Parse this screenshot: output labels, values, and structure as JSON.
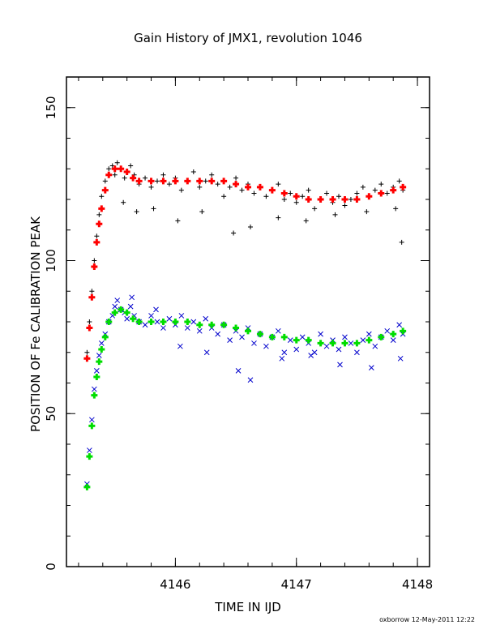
{
  "chart_data": {
    "type": "scatter",
    "title": "Gain History of JMX1, revolution 1046",
    "xlabel": "TIME IN IJD",
    "ylabel": "POSITION OF Fe CALIBRATION PEAK",
    "footer": "oxborrow 12-May-2011 12:22",
    "xlim": [
      4145.1,
      4148.1
    ],
    "ylim": [
      0,
      160
    ],
    "x_ticks": [
      4146,
      4147,
      4148
    ],
    "y_ticks": [
      0,
      50,
      100,
      150
    ],
    "grid": false,
    "series": [
      {
        "marker": "plus",
        "color": "#000000",
        "x": [
          4145.27,
          4145.29,
          4145.31,
          4145.33,
          4145.35,
          4145.37,
          4145.39,
          4145.42,
          4145.45,
          4145.48,
          4145.5,
          4145.52,
          4145.55,
          4145.58,
          4145.6,
          4145.63,
          4145.66,
          4145.7,
          4145.75,
          4145.8,
          4145.85,
          4145.9,
          4145.95,
          4146.0,
          4146.05,
          4146.1,
          4146.15,
          4146.2,
          4146.25,
          4146.3,
          4146.35,
          4146.4,
          4146.45,
          4146.5,
          4146.55,
          4146.6,
          4146.65,
          4146.7,
          4146.75,
          4146.8,
          4146.85,
          4146.9,
          4146.95,
          4147.0,
          4147.05,
          4147.1,
          4147.15,
          4147.2,
          4147.25,
          4147.3,
          4147.35,
          4147.4,
          4147.45,
          4147.5,
          4147.55,
          4147.6,
          4147.65,
          4147.7,
          4147.75,
          4147.8,
          4147.85,
          4147.88,
          4145.57,
          4145.68,
          4145.82,
          4146.02,
          4146.22,
          4146.48,
          4146.62,
          4146.85,
          4147.08,
          4147.32,
          4147.58,
          4147.82,
          4147.87
        ],
        "y": [
          70,
          80,
          90,
          100,
          108,
          115,
          121,
          126,
          130,
          131,
          128,
          132,
          130,
          127,
          129,
          131,
          128,
          125,
          127,
          124,
          126,
          128,
          125,
          127,
          123,
          126,
          129,
          124,
          126,
          128,
          125,
          121,
          124,
          127,
          123,
          125,
          122,
          124,
          121,
          123,
          125,
          120,
          122,
          119,
          121,
          123,
          117,
          120,
          122,
          119,
          121,
          118,
          120,
          122,
          124,
          121,
          123,
          125,
          122,
          124,
          126,
          123,
          119,
          116,
          117,
          113,
          116,
          109,
          111,
          114,
          113,
          115,
          116,
          117,
          106
        ]
      },
      {
        "marker": "plus",
        "color": "#ff0000",
        "x": [
          4145.27,
          4145.29,
          4145.31,
          4145.33,
          4145.35,
          4145.37,
          4145.39,
          4145.42,
          4145.45,
          4145.5,
          4145.55,
          4145.6,
          4145.65,
          4145.7,
          4145.8,
          4145.9,
          4146.0,
          4146.1,
          4146.2,
          4146.3,
          4146.4,
          4146.5,
          4146.6,
          4146.7,
          4146.8,
          4146.9,
          4147.0,
          4147.1,
          4147.2,
          4147.3,
          4147.4,
          4147.5,
          4147.6,
          4147.7,
          4147.8,
          4147.88
        ],
        "y": [
          68,
          78,
          88,
          98,
          106,
          112,
          117,
          123,
          128,
          130,
          130,
          129,
          127,
          126,
          126,
          126,
          126,
          126,
          126,
          126,
          126,
          125,
          124,
          124,
          123,
          122,
          121,
          120,
          120,
          120,
          120,
          120,
          121,
          122,
          123,
          124
        ]
      },
      {
        "marker": "cross",
        "color": "#0000cc",
        "x": [
          4145.27,
          4145.29,
          4145.31,
          4145.33,
          4145.35,
          4145.37,
          4145.39,
          4145.42,
          4145.45,
          4145.48,
          4145.5,
          4145.52,
          4145.55,
          4145.58,
          4145.6,
          4145.63,
          4145.66,
          4145.7,
          4145.75,
          4145.8,
          4145.85,
          4145.9,
          4145.95,
          4146.0,
          4146.05,
          4146.1,
          4146.15,
          4146.2,
          4146.25,
          4146.3,
          4146.35,
          4146.4,
          4146.45,
          4146.5,
          4146.55,
          4146.6,
          4146.65,
          4146.7,
          4146.75,
          4146.8,
          4146.85,
          4146.9,
          4146.95,
          4147.0,
          4147.05,
          4147.1,
          4147.15,
          4147.2,
          4147.25,
          4147.3,
          4147.35,
          4147.4,
          4147.45,
          4147.5,
          4147.55,
          4147.6,
          4147.65,
          4147.7,
          4147.75,
          4147.8,
          4147.85,
          4147.88,
          4145.64,
          4145.84,
          4146.04,
          4146.26,
          4146.52,
          4146.62,
          4146.88,
          4147.12,
          4147.36,
          4147.62,
          4147.86
        ],
        "y": [
          27,
          38,
          48,
          58,
          64,
          69,
          73,
          76,
          80,
          82,
          85,
          87,
          84,
          83,
          81,
          85,
          82,
          80,
          79,
          82,
          80,
          78,
          81,
          79,
          82,
          78,
          80,
          77,
          81,
          78,
          76,
          79,
          74,
          77,
          75,
          78,
          73,
          76,
          72,
          75,
          77,
          70,
          74,
          71,
          75,
          73,
          70,
          76,
          72,
          74,
          71,
          75,
          73,
          70,
          74,
          76,
          72,
          75,
          77,
          74,
          79,
          76,
          88,
          84,
          72,
          70,
          64,
          61,
          68,
          69,
          66,
          65,
          68
        ]
      },
      {
        "marker": "plus",
        "color": "#00dd00",
        "x": [
          4145.27,
          4145.29,
          4145.31,
          4145.33,
          4145.35,
          4145.37,
          4145.39,
          4145.42,
          4145.45,
          4145.5,
          4145.55,
          4145.6,
          4145.65,
          4145.7,
          4145.8,
          4145.9,
          4146.0,
          4146.1,
          4146.2,
          4146.3,
          4146.4,
          4146.5,
          4146.6,
          4146.7,
          4146.8,
          4146.9,
          4147.0,
          4147.1,
          4147.2,
          4147.3,
          4147.4,
          4147.5,
          4147.6,
          4147.7,
          4147.8,
          4147.88
        ],
        "y": [
          26,
          36,
          46,
          56,
          62,
          67,
          71,
          75,
          80,
          83,
          84,
          83,
          81,
          80,
          80,
          80,
          80,
          80,
          79,
          79,
          79,
          78,
          77,
          76,
          75,
          75,
          74,
          74,
          73,
          73,
          73,
          73,
          74,
          75,
          76,
          77
        ]
      }
    ]
  }
}
